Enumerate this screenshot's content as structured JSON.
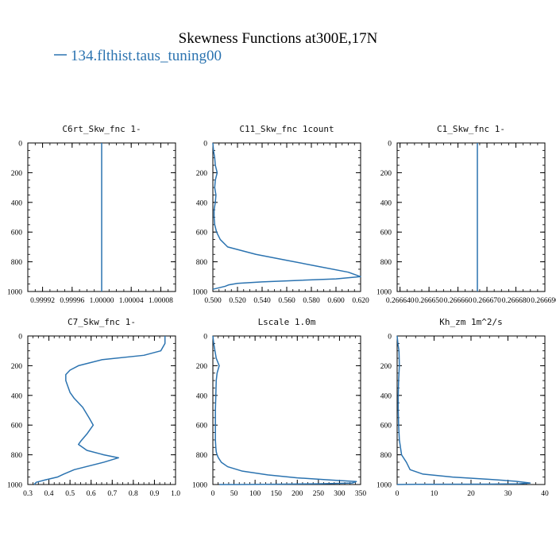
{
  "figure": {
    "title": "Skewness Functions at300E,17N",
    "legend_label": "134.flthist.taus_tuning00",
    "series_color": "#2b73b0"
  },
  "chart_data": [
    {
      "type": "line",
      "title": "C6rt_Skw_fnc  1-",
      "xlim": [
        0.9999,
        1.0001
      ],
      "ylim": [
        0,
        1000
      ],
      "y_inverted": true,
      "xticks": [
        0.99992,
        0.99996,
        1.0,
        1.00004,
        1.00008
      ],
      "xtick_labels": [
        "0.99992",
        "0.99996",
        "1.00000",
        "1.00004",
        "1.00008"
      ],
      "yticks": [
        0,
        200,
        400,
        600,
        800,
        1000
      ],
      "ytick_labels": [
        "0",
        "200",
        "400",
        "600",
        "800",
        "1000"
      ],
      "series": [
        {
          "x": [
            1.0,
            1.0
          ],
          "y": [
            0,
            1000
          ]
        }
      ]
    },
    {
      "type": "line",
      "title": "C11_Skw_fnc  1count",
      "xlim": [
        0.5,
        0.62
      ],
      "ylim": [
        0,
        1000
      ],
      "y_inverted": true,
      "xticks": [
        0.5,
        0.52,
        0.54,
        0.56,
        0.58,
        0.6,
        0.62
      ],
      "xtick_labels": [
        "0.500",
        "0.520",
        "0.540",
        "0.560",
        "0.580",
        "0.600",
        "0.620"
      ],
      "yticks": [
        0,
        200,
        400,
        600,
        800,
        1000
      ],
      "ytick_labels": [
        "0",
        "200",
        "400",
        "600",
        "800",
        "1000"
      ],
      "series": [
        {
          "x": [
            0.5,
            0.5005,
            0.5015,
            0.502,
            0.5035,
            0.502,
            0.5015,
            0.5025,
            0.502,
            0.501,
            0.501,
            0.5015,
            0.503,
            0.506,
            0.512,
            0.535,
            0.56,
            0.585,
            0.61,
            0.62,
            0.6,
            0.57,
            0.54,
            0.52,
            0.513,
            0.51,
            0.5
          ],
          "y": [
            0,
            50,
            100,
            150,
            200,
            250,
            300,
            350,
            400,
            450,
            500,
            550,
            600,
            650,
            700,
            750,
            790,
            830,
            870,
            900,
            915,
            925,
            935,
            945,
            955,
            965,
            985
          ]
        }
      ]
    },
    {
      "type": "line",
      "title": "C1_Skw_fnc  1-",
      "xlim": [
        0.266639,
        0.26669
      ],
      "ylim": [
        0,
        1000
      ],
      "y_inverted": true,
      "xticks": [
        0.26664,
        0.26665,
        0.26666,
        0.26667,
        0.26668,
        0.26669
      ],
      "xtick_labels": [
        "0.266640",
        "0.266650",
        "0.266660",
        "0.266670",
        "0.266680",
        "0.266690"
      ],
      "yticks": [
        0,
        200,
        400,
        600,
        800,
        1000
      ],
      "ytick_labels": [
        "0",
        "200",
        "400",
        "600",
        "800",
        "1000"
      ],
      "series": [
        {
          "x": [
            0.2666667,
            0.2666667
          ],
          "y": [
            0,
            1000
          ]
        }
      ]
    },
    {
      "type": "line",
      "title": "C7_Skw_fnc  1-",
      "xlim": [
        0.3,
        1.0
      ],
      "ylim": [
        0,
        1000
      ],
      "y_inverted": true,
      "xticks": [
        0.3,
        0.4,
        0.5,
        0.6,
        0.7,
        0.8,
        0.9,
        1.0
      ],
      "xtick_labels": [
        "0.3",
        "0.4",
        "0.5",
        "0.6",
        "0.7",
        "0.8",
        "0.9",
        "1.0"
      ],
      "yticks": [
        0,
        200,
        400,
        600,
        800,
        1000
      ],
      "ytick_labels": [
        "0",
        "200",
        "400",
        "600",
        "800",
        "1000"
      ],
      "series": [
        {
          "x": [
            0.95,
            0.95,
            0.93,
            0.85,
            0.65,
            0.54,
            0.5,
            0.48,
            0.48,
            0.49,
            0.5,
            0.52,
            0.56,
            0.59,
            0.61,
            0.58,
            0.55,
            0.54,
            0.58,
            0.66,
            0.73,
            0.66,
            0.52,
            0.47,
            0.44,
            0.38,
            0.34,
            0.33
          ],
          "y": [
            0,
            50,
            100,
            130,
            160,
            200,
            230,
            260,
            300,
            340,
            380,
            420,
            480,
            550,
            600,
            660,
            710,
            730,
            770,
            800,
            820,
            850,
            900,
            930,
            950,
            970,
            985,
            1000
          ]
        }
      ]
    },
    {
      "type": "line",
      "title": "Lscale  1.0m",
      "xlim": [
        0,
        350
      ],
      "ylim": [
        0,
        1000
      ],
      "y_inverted": true,
      "xticks": [
        0,
        50,
        100,
        150,
        200,
        250,
        300,
        350
      ],
      "xtick_labels": [
        "0",
        "50",
        "100",
        "150",
        "200",
        "250",
        "300",
        "350"
      ],
      "yticks": [
        0,
        200,
        400,
        600,
        800,
        1000
      ],
      "ytick_labels": [
        "0",
        "200",
        "400",
        "600",
        "800",
        "1000"
      ],
      "series": [
        {
          "x": [
            0,
            2,
            5,
            8,
            15,
            10,
            8,
            7,
            6,
            6,
            6,
            7,
            8,
            10,
            13,
            20,
            35,
            70,
            130,
            200,
            280,
            340,
            330,
            250,
            150,
            60,
            15
          ],
          "y": [
            0,
            50,
            100,
            150,
            200,
            250,
            300,
            400,
            500,
            600,
            700,
            750,
            780,
            800,
            820,
            850,
            880,
            910,
            935,
            955,
            970,
            980,
            990,
            995,
            998,
            1000,
            1000
          ]
        }
      ]
    },
    {
      "type": "line",
      "title": "Kh_zm  1m^2/s",
      "xlim": [
        0,
        40
      ],
      "ylim": [
        0,
        1000
      ],
      "y_inverted": true,
      "xticks": [
        0,
        10,
        20,
        30,
        40
      ],
      "xtick_labels": [
        "0",
        "10",
        "20",
        "30",
        "40"
      ],
      "yticks": [
        0,
        200,
        400,
        600,
        800,
        1000
      ],
      "ytick_labels": [
        "0",
        "200",
        "400",
        "600",
        "800",
        "1000"
      ],
      "series": [
        {
          "x": [
            0,
            0.2,
            0.5,
            0.6,
            0.4,
            0.3,
            0.3,
            0.4,
            0.6,
            1.2,
            2.5,
            3.5,
            7,
            15,
            25,
            32,
            36,
            33,
            25,
            15,
            5,
            0
          ],
          "y": [
            0,
            50,
            100,
            200,
            300,
            400,
            500,
            600,
            700,
            800,
            850,
            900,
            930,
            950,
            965,
            978,
            990,
            995,
            997,
            998,
            999,
            1000
          ]
        }
      ]
    }
  ]
}
